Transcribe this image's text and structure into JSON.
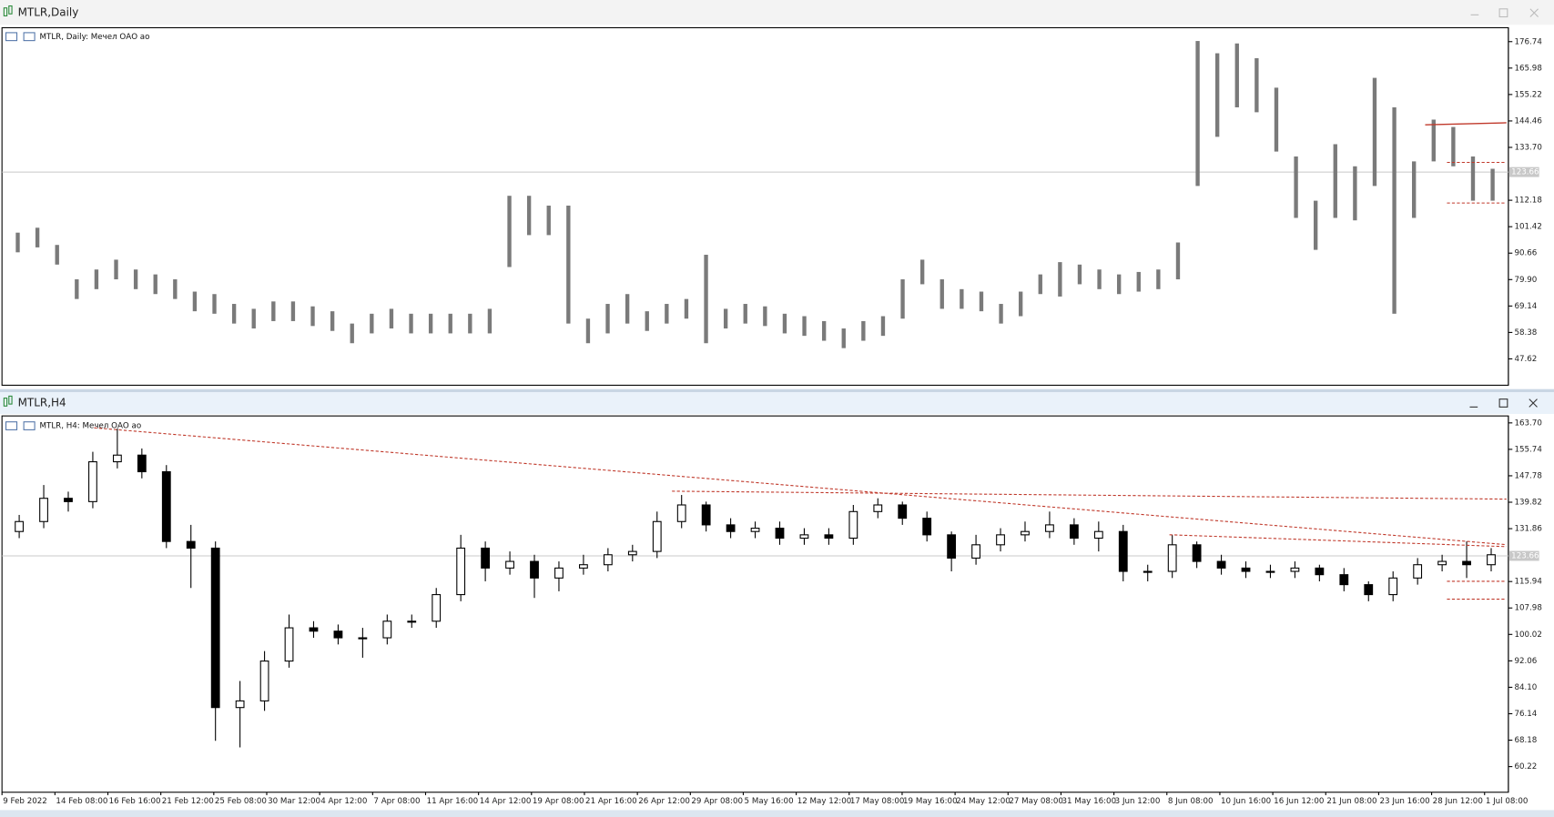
{
  "chart_data": [
    {
      "type": "ohlc",
      "window_title": "MTLR,Daily",
      "title": "MTLR, Daily:  Мечел ОАО ао",
      "ylim": [
        36.9,
        182.4
      ],
      "yticks": [
        176.74,
        165.98,
        155.22,
        144.46,
        {
          "value": 133.7,
          "label": "133.70"
        },
        112.18,
        101.42,
        90.66,
        {
          "value": 79.9,
          "label": "79.90"
        },
        69.14,
        58.38,
        47.62
      ],
      "current_price": 123.66,
      "high": [
        99,
        101,
        94,
        80,
        84,
        88,
        84,
        82,
        80,
        75,
        74,
        70,
        68,
        71,
        71,
        69,
        67,
        62,
        66,
        68,
        66,
        66,
        66,
        66,
        68,
        114,
        114,
        110,
        110,
        64,
        70,
        74,
        67,
        70,
        72,
        90,
        68,
        70,
        69,
        66,
        65,
        63,
        60,
        63,
        65,
        80,
        88,
        80,
        76,
        75,
        70,
        75,
        82,
        87,
        86,
        84,
        82,
        83,
        84,
        95,
        177,
        172,
        176,
        170,
        158,
        130,
        112,
        135,
        126,
        162,
        150,
        128,
        145,
        142,
        130,
        125
      ],
      "low": [
        91,
        93,
        86,
        72,
        76,
        80,
        76,
        74,
        72,
        67,
        66,
        62,
        60,
        63,
        63,
        61,
        59,
        54,
        58,
        60,
        58,
        58,
        58,
        58,
        58,
        85,
        98,
        98,
        62,
        54,
        58,
        62,
        59,
        62,
        64,
        54,
        60,
        62,
        61,
        58,
        57,
        55,
        52,
        55,
        57,
        64,
        78,
        68,
        68,
        67,
        62,
        65,
        74,
        73,
        78,
        76,
        74,
        75,
        76,
        80,
        118,
        138,
        150,
        148,
        132,
        105,
        92,
        105,
        104,
        118,
        66,
        105,
        128,
        126,
        112,
        112
      ]
    },
    {
      "type": "candlestick",
      "window_title": "MTLR,H4",
      "title": "MTLR, H4:  Мечел ОАО ао",
      "ylim": [
        52.5,
        165.8
      ],
      "yticks": [
        {
          "value": 163.7,
          "label": "163.70"
        },
        155.74,
        147.78,
        139.82,
        131.86,
        115.94,
        107.98,
        100.02,
        92.06,
        {
          "value": 84.1,
          "label": "84.10"
        },
        76.14,
        68.18,
        60.22
      ],
      "current_price": 123.66,
      "x_labels": [
        "9 Feb 2022",
        "14 Feb 08:00",
        "16 Feb 16:00",
        "21 Feb 12:00",
        "25 Feb 08:00",
        "30 Mar 12:00",
        "4 Apr 12:00",
        "7 Apr 08:00",
        "11 Apr 16:00",
        "14 Apr 12:00",
        "19 Apr 08:00",
        "21 Apr 16:00",
        "26 Apr 12:00",
        "29 Apr 08:00",
        "5 May 16:00",
        "12 May 12:00",
        "17 May 08:00",
        "19 May 16:00",
        "24 May 12:00",
        "27 May 08:00",
        "31 May 16:00",
        "3 Jun 12:00",
        "8 Jun 08:00",
        "10 Jun 16:00",
        "16 Jun 12:00",
        "21 Jun 08:00",
        "23 Jun 16:00",
        "28 Jun 12:00",
        "1 Jul 08:00"
      ],
      "open": [
        131,
        134,
        141,
        140,
        152,
        154,
        149,
        128,
        126,
        78,
        80,
        92,
        102,
        101,
        99,
        99,
        104,
        104,
        112,
        126,
        120,
        122,
        117,
        120,
        121,
        124,
        125,
        134,
        139,
        133,
        131,
        132,
        129,
        130,
        129,
        137,
        139,
        135,
        130,
        123,
        127,
        130,
        131,
        133,
        129,
        131,
        119,
        119,
        127,
        122,
        120,
        119,
        119,
        120,
        118,
        115,
        112,
        117,
        121,
        122,
        121
      ],
      "high": [
        136,
        145,
        143,
        155,
        162,
        156,
        151,
        133,
        128,
        86,
        95,
        106,
        104,
        103,
        102,
        106,
        106,
        114,
        130,
        128,
        125,
        124,
        122,
        124,
        126,
        127,
        137,
        142,
        140,
        135,
        134,
        134,
        132,
        132,
        139,
        141,
        140,
        137,
        131,
        130,
        132,
        134,
        137,
        135,
        134,
        133,
        121,
        130,
        128,
        124,
        122,
        121,
        122,
        121,
        120,
        116,
        119,
        123,
        124,
        128,
        126
      ],
      "low": [
        129,
        132,
        137,
        138,
        150,
        147,
        126,
        114,
        68,
        66,
        77,
        90,
        99,
        97,
        93,
        97,
        102,
        102,
        110,
        116,
        118,
        111,
        113,
        118,
        119,
        122,
        123,
        132,
        131,
        129,
        129,
        127,
        127,
        127,
        127,
        135,
        133,
        128,
        119,
        121,
        125,
        128,
        129,
        127,
        125,
        116,
        116,
        117,
        120,
        118,
        117,
        117,
        117,
        116,
        113,
        110,
        110,
        115,
        119,
        117,
        119
      ],
      "close": [
        134,
        141,
        140,
        152,
        154,
        149,
        128,
        126,
        78,
        80,
        92,
        102,
        101,
        99,
        99,
        104,
        104,
        112,
        126,
        120,
        122,
        117,
        120,
        121,
        124,
        125,
        134,
        139,
        133,
        131,
        132,
        129,
        130,
        129,
        137,
        139,
        135,
        130,
        123,
        127,
        130,
        131,
        133,
        129,
        131,
        119,
        119,
        127,
        122,
        120,
        119,
        119,
        120,
        118,
        115,
        112,
        117,
        121,
        122,
        121,
        124
      ]
    }
  ]
}
